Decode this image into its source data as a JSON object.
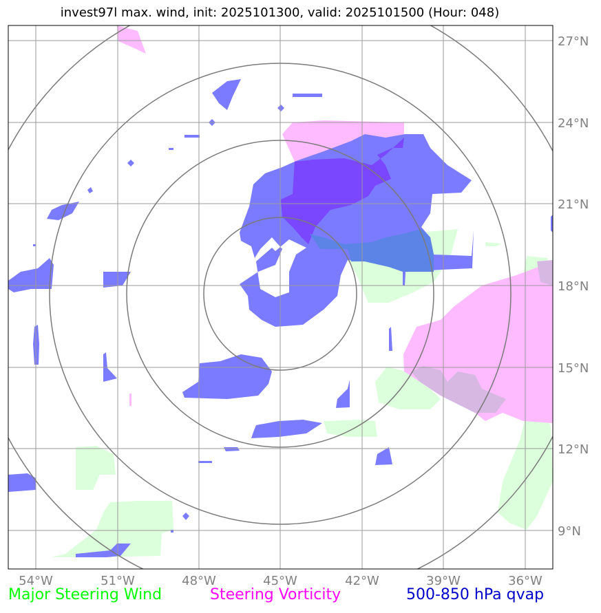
{
  "title": "invest97l max. wind, init: 2025101300, valid: 2025101500 (Hour: 048)",
  "map": {
    "lon_range": [
      -55.0,
      -35.0
    ],
    "lat_range": [
      7.0,
      27.5
    ],
    "lon_ticks": [
      {
        "value": -54,
        "label": "54°W"
      },
      {
        "value": -51,
        "label": "51°W"
      },
      {
        "value": -48,
        "label": "48°W"
      },
      {
        "value": -45,
        "label": "45°W"
      },
      {
        "value": -42,
        "label": "42°W"
      },
      {
        "value": -39,
        "label": "39°W"
      },
      {
        "value": -36,
        "label": "36°W"
      }
    ],
    "lat_ticks": [
      {
        "value": 27,
        "label": "27°N"
      },
      {
        "value": 24,
        "label": "24°N"
      },
      {
        "value": 21,
        "label": "21°N"
      },
      {
        "value": 18,
        "label": "18°N"
      },
      {
        "value": 15,
        "label": "15°N"
      },
      {
        "value": 12,
        "label": "12°N"
      },
      {
        "value": 9,
        "label": "9°N"
      }
    ],
    "storm_center": {
      "lon": -45.0,
      "lat": 17.6
    },
    "range_rings_deg": [
      2.85,
      5.7,
      8.55,
      11.4
    ]
  },
  "colors": {
    "wind": "#00ff00",
    "vorticity": "#ff00ff",
    "qvap": "#0000cc",
    "wind_fill": "#dcffdc",
    "vort_fill": "#ffbbff",
    "qvap_fill": "#7b7bff",
    "overlap_fill": "#7a47ff",
    "qvap_wind_fill": "#5c84e6"
  },
  "legend": {
    "wind": "Major Steering Wind",
    "vorticity": "Steering Vorticity",
    "qvap": "500-850 hPa qvap"
  }
}
